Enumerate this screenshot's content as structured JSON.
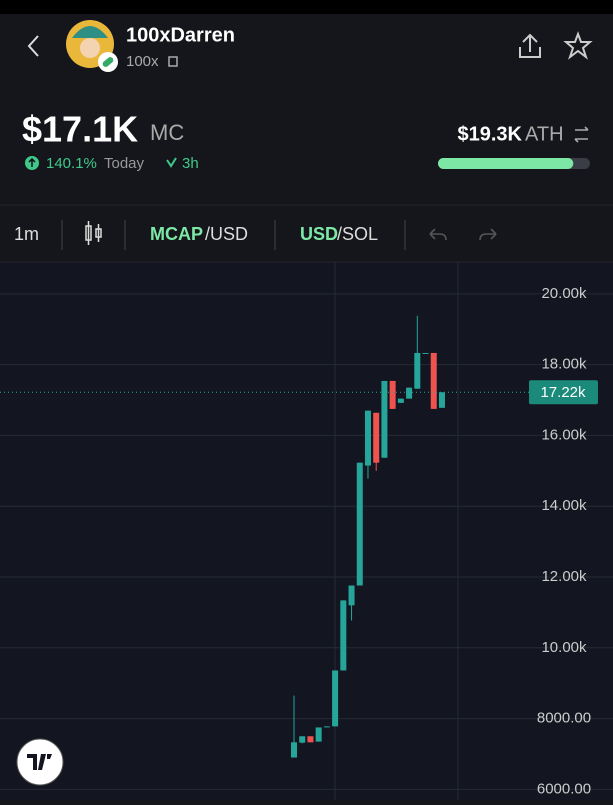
{
  "header": {
    "name": "100xDarren",
    "ticker": "100x"
  },
  "stats": {
    "market_cap": "$17.1K",
    "market_cap_label": "MC",
    "change": "140.1%",
    "period": "Today",
    "age": "3h",
    "ath": "$19.3K",
    "ath_label": "ATH",
    "ath_progress": 89
  },
  "toolbar": {
    "interval": "1m",
    "mcap": "MCAP",
    "mcap_unit": "/USD",
    "usd": "USD",
    "usd_unit": "/SOL"
  },
  "chart_data": {
    "type": "candlestick",
    "up_color": "#26a69a",
    "down_color": "#ef5350",
    "ylim": [
      5700,
      20900
    ],
    "yticks": [
      {
        "value": 6000,
        "label": "6000.00"
      },
      {
        "value": 8000,
        "label": "8000.00"
      },
      {
        "value": 10000,
        "label": "10.00k"
      },
      {
        "value": 12000,
        "label": "12.00k"
      },
      {
        "value": 14000,
        "label": "14.00k"
      },
      {
        "value": 16000,
        "label": "16.00k"
      },
      {
        "value": 18000,
        "label": "18.00k"
      },
      {
        "value": 20000,
        "label": "20.00k"
      }
    ],
    "grid": true,
    "last_price": {
      "value": 17220,
      "label": "17.22k"
    },
    "candles": [
      {
        "open": 6900,
        "high": 8650,
        "low": 6900,
        "close": 7330
      },
      {
        "open": 7320,
        "high": 7500,
        "low": 7300,
        "close": 7500
      },
      {
        "open": 7500,
        "high": 7500,
        "low": 7330,
        "close": 7330
      },
      {
        "open": 7350,
        "high": 7750,
        "low": 7350,
        "close": 7750
      },
      {
        "open": 7760,
        "high": 7780,
        "low": 7760,
        "close": 7780
      },
      {
        "open": 7780,
        "high": 9360,
        "low": 7780,
        "close": 9360
      },
      {
        "open": 9360,
        "high": 11340,
        "low": 9360,
        "close": 11340
      },
      {
        "open": 11200,
        "high": 11760,
        "low": 10770,
        "close": 11760
      },
      {
        "open": 11760,
        "high": 15230,
        "low": 11760,
        "close": 15230
      },
      {
        "open": 15150,
        "high": 16700,
        "low": 14780,
        "close": 16700
      },
      {
        "open": 16640,
        "high": 16640,
        "low": 15000,
        "close": 15230
      },
      {
        "open": 15370,
        "high": 17540,
        "low": 15370,
        "close": 17540
      },
      {
        "open": 17540,
        "high": 17540,
        "low": 16750,
        "close": 16750
      },
      {
        "open": 16920,
        "high": 17040,
        "low": 16920,
        "close": 17040
      },
      {
        "open": 17040,
        "high": 17350,
        "low": 17040,
        "close": 17350
      },
      {
        "open": 17320,
        "high": 19380,
        "low": 17320,
        "close": 18330
      },
      {
        "open": 18330,
        "high": 18330,
        "low": 18330,
        "close": 18330
      },
      {
        "open": 18330,
        "high": 18330,
        "low": 16750,
        "close": 16750
      },
      {
        "open": 16780,
        "high": 17220,
        "low": 16780,
        "close": 17220
      }
    ]
  }
}
